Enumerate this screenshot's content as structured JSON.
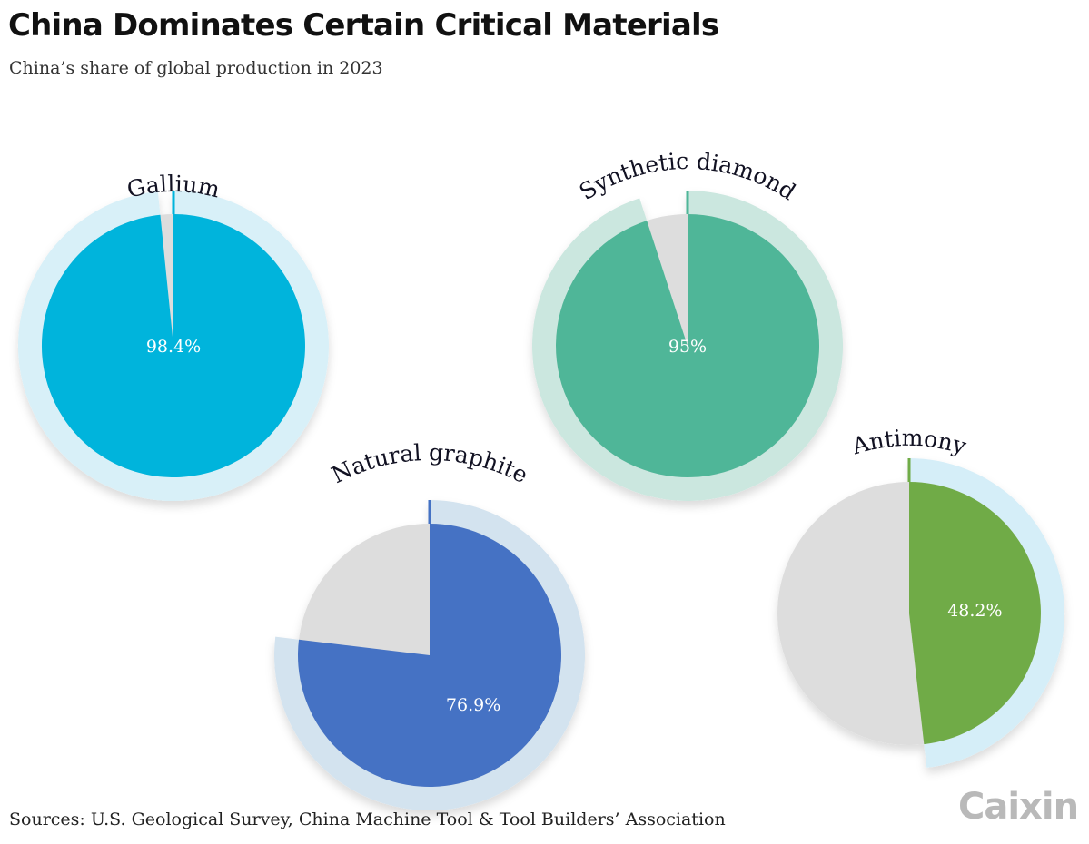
{
  "header": {
    "title": "China Dominates Certain Critical Materials",
    "subtitle": "China’s share of global production in 2023"
  },
  "footer": {
    "source": "Sources: U.S. Geological Survey, China Machine Tool & Tool Builders’ Association",
    "logo": "Caixin"
  },
  "chart_data": {
    "type": "pie",
    "title": "China Dominates Certain Critical Materials",
    "subtitle": "China’s share of global production in 2023",
    "unit": "%",
    "series": [
      {
        "name": "Gallium",
        "value": 98.4,
        "label": "98.4%",
        "color": "#00b4dc",
        "ring_color": "#d8f0f8"
      },
      {
        "name": "Synthetic diamond",
        "value": 95,
        "label": "95%",
        "color": "#4fb698",
        "ring_color": "#cbe7df"
      },
      {
        "name": "Natural graphite",
        "value": 76.9,
        "label": "76.9%",
        "color": "#4472c4",
        "ring_color": "#d3e3ef"
      },
      {
        "name": "Antimony",
        "value": 48.2,
        "label": "48.2%",
        "color": "#6fab46",
        "ring_color": "#d5eef8"
      }
    ],
    "remainder_color": "#dddddd"
  }
}
